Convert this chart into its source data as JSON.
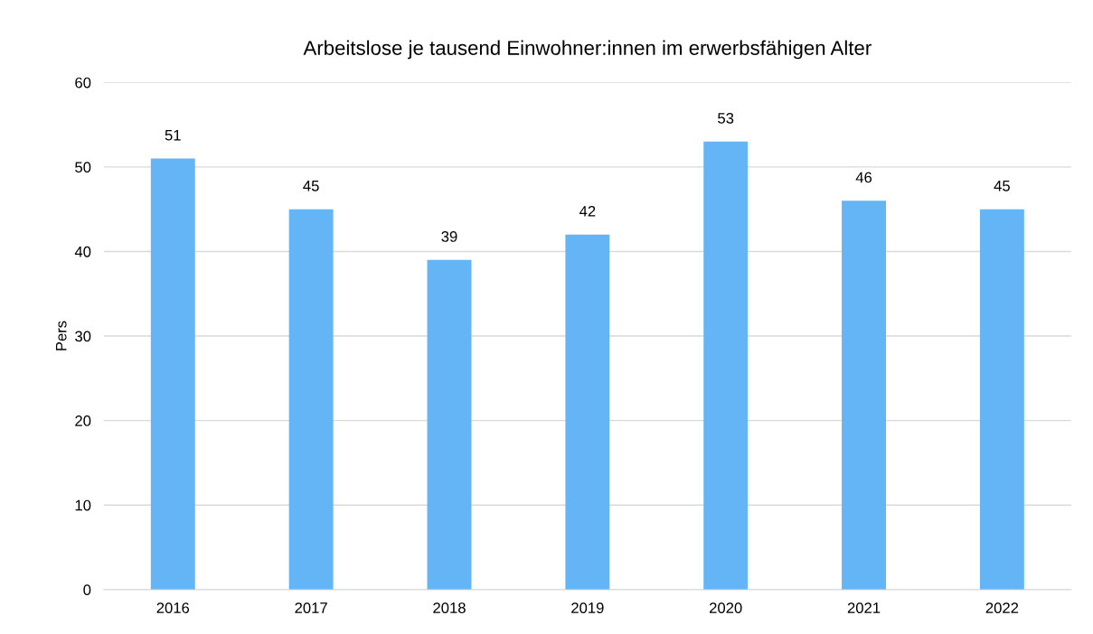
{
  "chart_data": {
    "type": "bar",
    "title": "Arbeitslose je tausend Einwohner:innen im erwerbsfähigen Alter",
    "ylabel": "Pers",
    "categories": [
      "2016",
      "2017",
      "2018",
      "2019",
      "2020",
      "2021",
      "2022"
    ],
    "values": [
      51,
      45,
      39,
      42,
      53,
      46,
      45
    ],
    "color": "#64b5f6",
    "ylim": [
      0,
      60
    ],
    "yticks": [
      0,
      10,
      20,
      30,
      40,
      50,
      60
    ],
    "grid": "y",
    "data_labels": true
  }
}
